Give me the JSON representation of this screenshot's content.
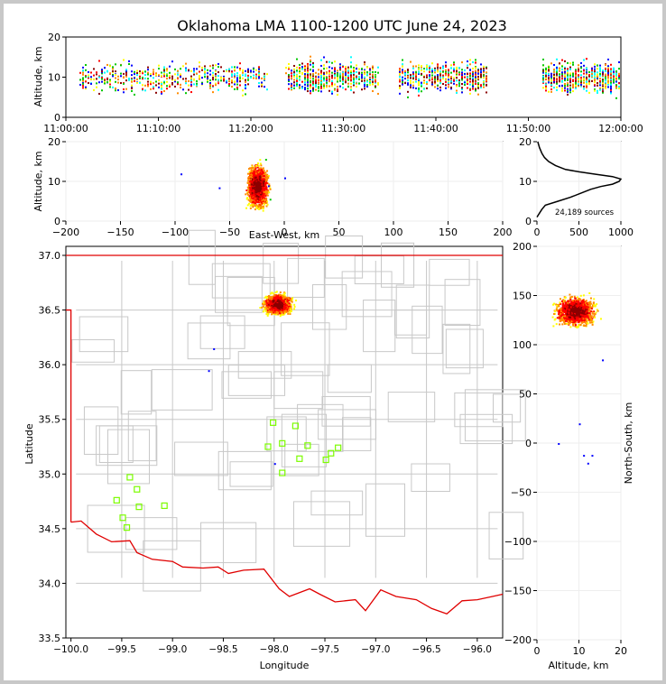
{
  "title": "Oklahoma LMA 1100-1200 UTC June 24, 2023",
  "colors": {
    "county": "#c8c8c8",
    "state_border": "#e00000",
    "station": "#7cfc00",
    "axis": "#000000",
    "density_scale": [
      "#0000ff",
      "#00ffff",
      "#00c800",
      "#ffff00",
      "#ff8c00",
      "#ff0000",
      "#8b0000",
      "#ffffff"
    ]
  },
  "chart_data": [
    {
      "panel": "time-altitude",
      "type": "scatter",
      "ylabel": "Altitude, km",
      "ylim": [
        0,
        20
      ],
      "yticks": [
        0,
        10,
        20
      ],
      "xticks": [
        "11:00:00",
        "11:10:00",
        "11:20:00",
        "11:30:00",
        "11:40:00",
        "11:50:00",
        "12:00:00"
      ]
    },
    {
      "panel": "ew-altitude",
      "type": "scatter",
      "xlabel": "East-West, km",
      "ylabel": "Altitude, km",
      "xlim": [
        -200,
        200
      ],
      "ylim": [
        0,
        20
      ],
      "xticks": [
        "−200",
        "−150",
        "−100",
        "−50",
        "0",
        "50",
        "100",
        "150",
        "200"
      ],
      "yticks": [
        0,
        10,
        20
      ],
      "cluster_center": {
        "x": -25,
        "y": 9
      }
    },
    {
      "panel": "altitude-histogram",
      "type": "line",
      "xlim": [
        0,
        1000
      ],
      "ylim": [
        0,
        20
      ],
      "xticks": [
        "0",
        "500",
        "1000"
      ],
      "yticks": [
        0,
        10,
        20
      ],
      "annotation": "24,189 sources",
      "x": [
        0,
        30,
        60,
        100,
        250,
        400,
        520,
        640,
        760,
        900,
        980,
        1000,
        900,
        700,
        500,
        340,
        220,
        140,
        90,
        60,
        30,
        10
      ],
      "y": [
        1.0,
        2.0,
        3.0,
        4.0,
        5.0,
        6.0,
        7.0,
        8.0,
        8.7,
        9.3,
        10.0,
        10.6,
        11.2,
        11.8,
        12.4,
        13.0,
        14.0,
        15.0,
        16.0,
        17.0,
        18.5,
        20.0
      ]
    },
    {
      "panel": "plan-view",
      "type": "scatter",
      "xlabel": "Longitude",
      "ylabel": "Latitude",
      "xlim": [
        -100.05,
        -95.75
      ],
      "ylim": [
        33.5,
        37.0
      ],
      "xticks": [
        "−100.0",
        "−99.5",
        "−99.0",
        "−98.5",
        "−98.0",
        "−97.5",
        "−97.0",
        "−96.5",
        "−96.0"
      ],
      "yticks": [
        "33.5",
        "34.0",
        "34.5",
        "35.0",
        "35.5",
        "36.0",
        "36.5",
        "37.0"
      ],
      "stations": [
        {
          "x": -99.42,
          "y": 34.97
        },
        {
          "x": -99.35,
          "y": 34.86
        },
        {
          "x": -99.55,
          "y": 34.76
        },
        {
          "x": -99.33,
          "y": 34.7
        },
        {
          "x": -99.08,
          "y": 34.71
        },
        {
          "x": -99.49,
          "y": 34.6
        },
        {
          "x": -99.45,
          "y": 34.51
        },
        {
          "x": -98.01,
          "y": 35.47
        },
        {
          "x": -97.79,
          "y": 35.44
        },
        {
          "x": -98.06,
          "y": 35.25
        },
        {
          "x": -97.92,
          "y": 35.28
        },
        {
          "x": -97.67,
          "y": 35.26
        },
        {
          "x": -97.37,
          "y": 35.24
        },
        {
          "x": -97.44,
          "y": 35.19
        },
        {
          "x": -97.75,
          "y": 35.14
        },
        {
          "x": -97.49,
          "y": 35.13
        },
        {
          "x": -97.92,
          "y": 35.01
        }
      ],
      "cluster_center": {
        "x": -97.97,
        "y": 36.56
      }
    },
    {
      "panel": "altitude-ns",
      "type": "scatter",
      "xlabel": "Altitude, km",
      "ylabel": "North-South, km",
      "xlim": [
        0,
        20
      ],
      "ylim": [
        -200,
        200
      ],
      "xticks": [
        "0",
        "10",
        "20"
      ],
      "yticks": [
        "−200",
        "−150",
        "−100",
        "−50",
        "0",
        "50",
        "100",
        "150",
        "200"
      ],
      "cluster_center": {
        "x": 9,
        "y": 135
      }
    }
  ]
}
